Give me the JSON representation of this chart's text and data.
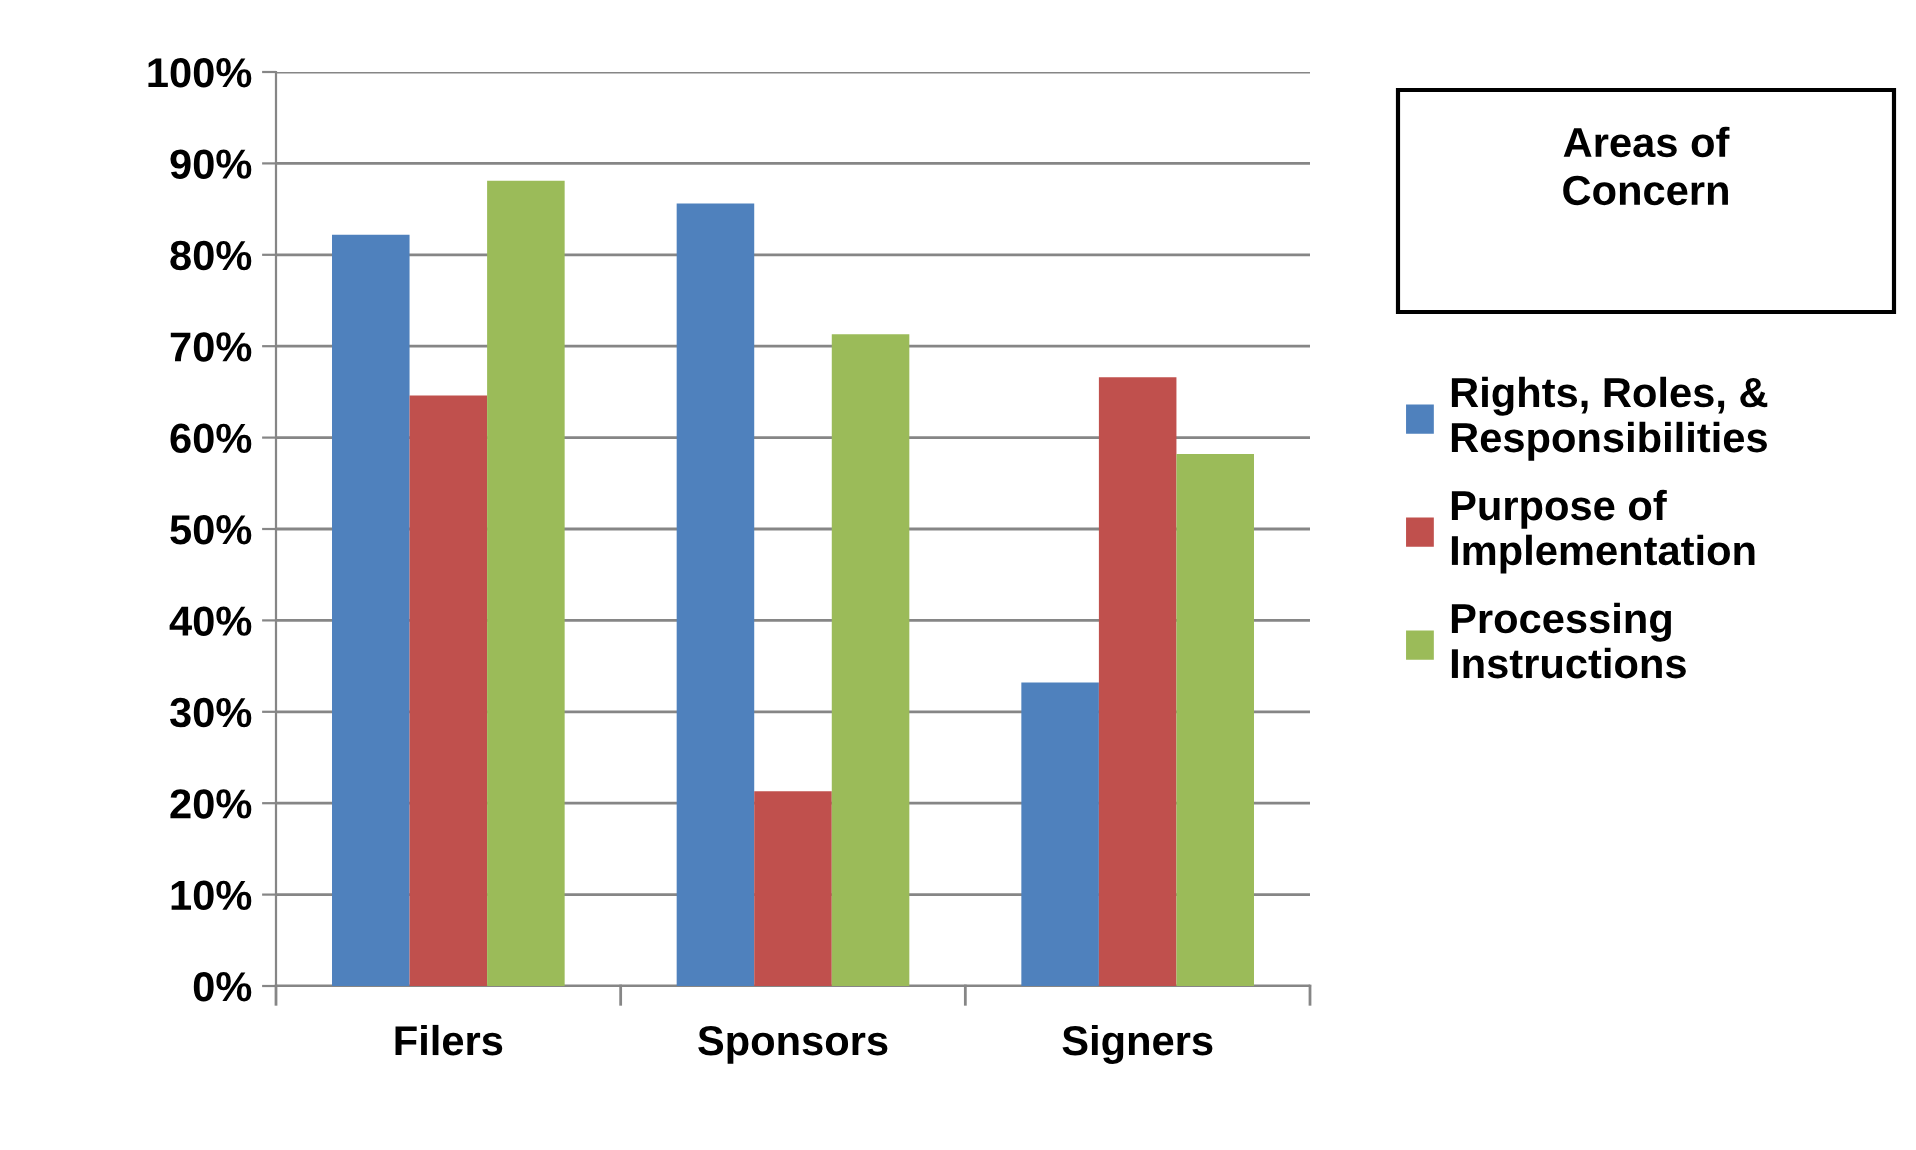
{
  "chart_data": {
    "type": "bar",
    "categories": [
      "Filers",
      "Sponsors",
      "Signers"
    ],
    "series": [
      {
        "name": "Rights, Roles, &\nResponsibilities",
        "color": "#4f81bd",
        "values": [
          82.2,
          85.6,
          33.2
        ]
      },
      {
        "name": "Purpose of\nImplementation",
        "color": "#c0504d",
        "values": [
          64.6,
          21.3,
          66.6
        ]
      },
      {
        "name": "Processing\nInstructions",
        "color": "#9bbb59",
        "values": [
          88.1,
          71.3,
          58.2
        ]
      }
    ],
    "legend_title": "Areas of\nConcern",
    "legend": "right",
    "ylim": [
      0,
      100
    ],
    "yticks": [
      {
        "value": 0,
        "label": "0%"
      },
      {
        "value": 10,
        "label": "10%"
      },
      {
        "value": 20,
        "label": "20%"
      },
      {
        "value": 30,
        "label": "30%"
      },
      {
        "value": 40,
        "label": "40%"
      },
      {
        "value": 50,
        "label": "50%"
      },
      {
        "value": 60,
        "label": "60%"
      },
      {
        "value": 70,
        "label": "70%"
      },
      {
        "value": 80,
        "label": "80%"
      },
      {
        "value": 90,
        "label": "90%"
      },
      {
        "value": 100,
        "label": "100%"
      }
    ],
    "grid": "y"
  }
}
